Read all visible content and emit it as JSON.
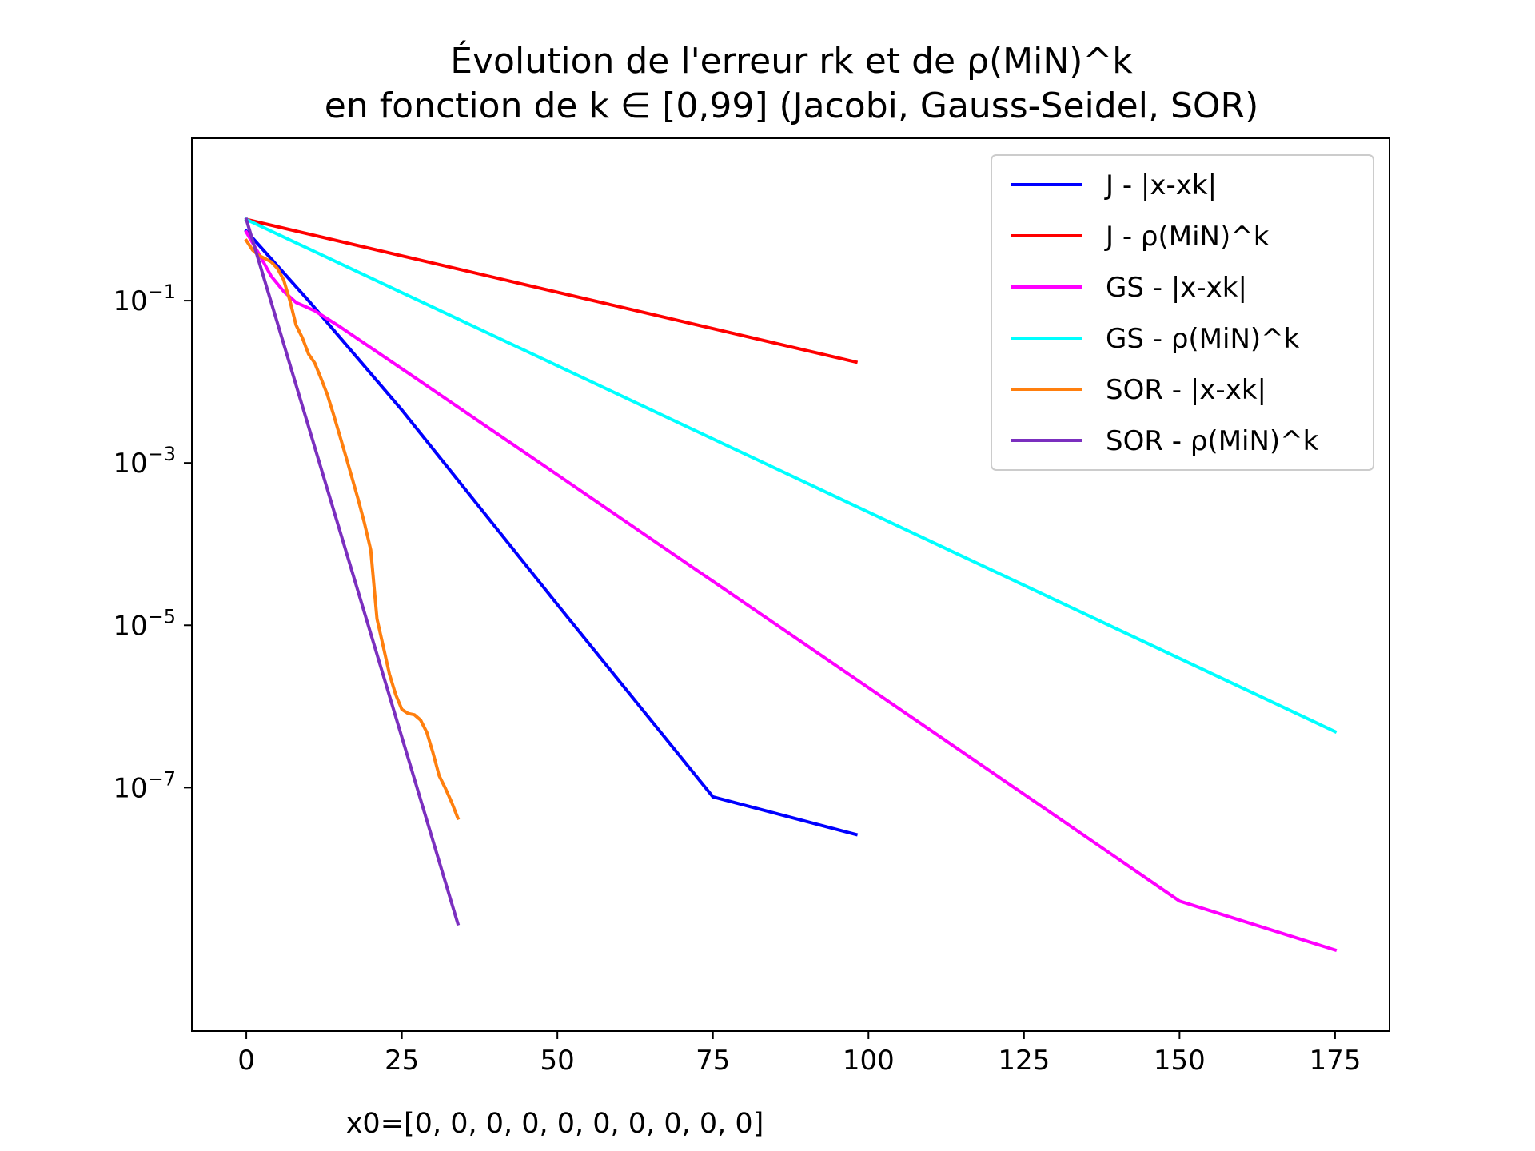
{
  "chart_data": {
    "type": "line",
    "title_line1": "Évolution de l'erreur rk et de ρ(MiN)^k",
    "title_line2": "en fonction de k ∈ [0,99] (Jacobi, Gauss-Seidel, SOR)",
    "xlabel": "x0=[0, 0, 0, 0, 0, 0, 0, 0, 0, 0]",
    "ylabel": "",
    "xscale": "linear",
    "yscale": "log",
    "xlim": [
      -8.75,
      183.75
    ],
    "ylim": [
      1e-10,
      10.0
    ],
    "x_ticks": [
      0,
      25,
      50,
      75,
      100,
      125,
      150,
      175
    ],
    "x_tick_labels": [
      "0",
      "25",
      "50",
      "75",
      "100",
      "125",
      "150",
      "175"
    ],
    "y_ticks": [
      0.1,
      0.001,
      1e-05,
      1e-07
    ],
    "y_tick_labels": [
      {
        "base": "10",
        "exp": "−1"
      },
      {
        "base": "10",
        "exp": "−3"
      },
      {
        "base": "10",
        "exp": "−5"
      },
      {
        "base": "10",
        "exp": "−7"
      }
    ],
    "grid": false,
    "legend_position": "top-right",
    "series": [
      {
        "name": "J - |x-xk|",
        "color": "#0000ff",
        "points": [
          [
            0,
            0.72
          ],
          [
            10,
            0.1
          ],
          [
            25,
            0.0045
          ],
          [
            50,
            1.8e-05
          ],
          [
            75,
            7.7e-08
          ],
          [
            98,
            2.64e-08
          ]
        ]
      },
      {
        "name": "J - ρ(MiN)^k",
        "color": "#ff0000",
        "points": [
          [
            0,
            1.0
          ],
          [
            98,
            0.0175
          ]
        ]
      },
      {
        "name": "GS - |x-xk|",
        "color": "#ff00ff",
        "points": [
          [
            0,
            0.7
          ],
          [
            2,
            0.38
          ],
          [
            4,
            0.2
          ],
          [
            6,
            0.13
          ],
          [
            8,
            0.095
          ],
          [
            11,
            0.075
          ],
          [
            15,
            0.048
          ],
          [
            25,
            0.0145
          ],
          [
            50,
            0.000715
          ],
          [
            75,
            3.49e-05
          ],
          [
            100,
            1.7e-06
          ],
          [
            125,
            8.3e-08
          ],
          [
            150,
            4e-09
          ],
          [
            175,
            1e-09
          ]
        ]
      },
      {
        "name": "GS - ρ(MiN)^k",
        "color": "#00ffff",
        "points": [
          [
            0,
            1.0
          ],
          [
            175,
            4.9e-07
          ]
        ]
      },
      {
        "name": "SOR - |x-xk|",
        "color": "#ff7f0e",
        "points": [
          [
            0,
            0.55
          ],
          [
            1,
            0.42
          ],
          [
            2,
            0.36
          ],
          [
            3,
            0.33
          ],
          [
            4,
            0.3
          ],
          [
            5,
            0.25
          ],
          [
            6,
            0.18
          ],
          [
            7,
            0.1
          ],
          [
            8,
            0.05
          ],
          [
            9,
            0.035
          ],
          [
            10,
            0.022
          ],
          [
            11,
            0.017
          ],
          [
            12,
            0.011
          ],
          [
            13,
            0.007
          ],
          [
            14,
            0.004
          ],
          [
            15,
            0.0022
          ],
          [
            16,
            0.0012
          ],
          [
            17,
            0.00065
          ],
          [
            18,
            0.00035
          ],
          [
            19,
            0.00018
          ],
          [
            20,
            8.5e-05
          ],
          [
            21,
            1.2e-05
          ],
          [
            22,
            5.5e-06
          ],
          [
            23,
            2.5e-06
          ],
          [
            24,
            1.4e-06
          ],
          [
            25,
            9.2e-07
          ],
          [
            26,
            8.2e-07
          ],
          [
            27,
            7.9e-07
          ],
          [
            28,
            6.8e-07
          ],
          [
            29,
            4.8e-07
          ],
          [
            30,
            2.7e-07
          ],
          [
            31,
            1.4e-07
          ],
          [
            32,
            9.8e-08
          ],
          [
            33,
            6.6e-08
          ],
          [
            34,
            4.2e-08
          ]
        ]
      },
      {
        "name": "SOR - ρ(MiN)^k",
        "color": "#7b2fbf",
        "points": [
          [
            0,
            1.0
          ],
          [
            34,
            2.1e-09
          ]
        ]
      }
    ]
  }
}
